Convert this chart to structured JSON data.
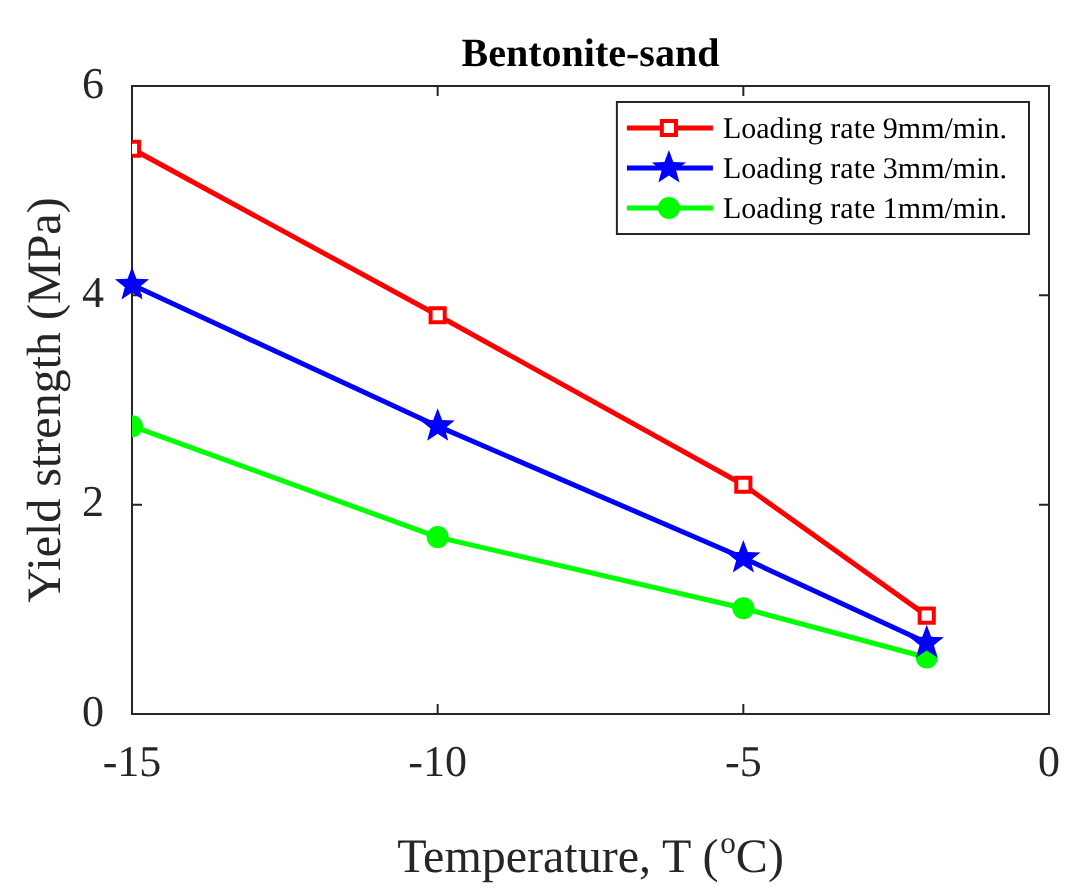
{
  "chart_data": {
    "type": "line",
    "title": "Bentonite-sand",
    "xlabel": "Temperature, T ($^{o}$C)",
    "ylabel": "Yield strength (MPa)",
    "x": [
      -15,
      -10,
      -5,
      -2
    ],
    "series": [
      {
        "name": "Loading rate 9mm/min.",
        "color": "#ff0000",
        "marker": "square",
        "values": [
          5.4,
          3.81,
          2.19,
          0.94
        ]
      },
      {
        "name": "Loading rate 3mm/min.",
        "color": "#0000ff",
        "marker": "star",
        "values": [
          4.1,
          2.75,
          1.49,
          0.68
        ]
      },
      {
        "name": "Loading rate 1mm/min.",
        "color": "#00ff00",
        "marker": "circle",
        "values": [
          2.75,
          1.69,
          1.01,
          0.54
        ]
      }
    ],
    "xlim": [
      -15,
      0
    ],
    "xticks": [
      -15,
      -10,
      -5,
      0
    ],
    "ylim": [
      0,
      6
    ],
    "yticks": [
      0,
      2,
      4,
      6
    ],
    "grid": false,
    "legend": "top right",
    "line_style": "solid"
  }
}
